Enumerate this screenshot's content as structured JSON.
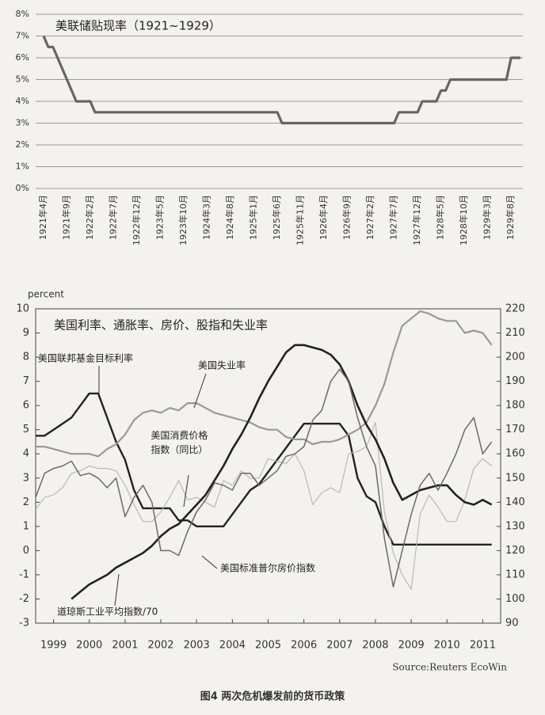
{
  "caption": "图4  两次危机爆发前的货币政策",
  "chart_data": [
    {
      "type": "line",
      "title": "美联储贴现率（1921~1929）",
      "color": "#666666",
      "grid": true,
      "ylim": [
        0,
        8
      ],
      "yticks": [
        {
          "value": 0,
          "label": "0%"
        },
        {
          "value": 1,
          "label": "1%"
        },
        {
          "value": 2,
          "label": "2%"
        },
        {
          "value": 3,
          "label": "3%"
        },
        {
          "value": 4,
          "label": "4%"
        },
        {
          "value": 5,
          "label": "5%"
        },
        {
          "value": 6,
          "label": "6%"
        },
        {
          "value": 7,
          "label": "7%"
        },
        {
          "value": 8,
          "label": "8%"
        }
      ],
      "categories": [
        "1921年4月",
        null,
        null,
        null,
        null,
        "1921年9月",
        null,
        null,
        null,
        null,
        "1922年2月",
        null,
        null,
        null,
        null,
        "1922年7月",
        null,
        null,
        null,
        null,
        "1922年12月",
        null,
        null,
        null,
        null,
        "1923年5月",
        null,
        null,
        null,
        null,
        "1923年10月",
        null,
        null,
        null,
        null,
        "1924年3月",
        null,
        null,
        null,
        null,
        "1924年8月",
        null,
        null,
        null,
        null,
        "1925年1月",
        null,
        null,
        null,
        null,
        "1925年6月",
        null,
        null,
        null,
        null,
        "1925年11月",
        null,
        null,
        null,
        null,
        "1926年4月",
        null,
        null,
        null,
        null,
        "1926年9月",
        null,
        null,
        null,
        null,
        "1927年2月",
        null,
        null,
        null,
        null,
        "1927年7月",
        null,
        null,
        null,
        null,
        "1927年12月",
        null,
        null,
        null,
        null,
        "1928年5月",
        null,
        null,
        null,
        null,
        "1928年10月",
        null,
        null,
        null,
        null,
        "1929年3月",
        null,
        null,
        null,
        null,
        "1929年8月",
        null,
        null
      ],
      "values": [
        7,
        6.5,
        6.5,
        6,
        5.5,
        5,
        4.5,
        4,
        4,
        4,
        4,
        3.5,
        3.5,
        3.5,
        3.5,
        3.5,
        3.5,
        3.5,
        3.5,
        3.5,
        3.5,
        3.5,
        3.5,
        3.5,
        3.5,
        3.5,
        3.5,
        3.5,
        3.5,
        3.5,
        3.5,
        3.5,
        3.5,
        3.5,
        3.5,
        3.5,
        3.5,
        3.5,
        3.5,
        3.5,
        3.5,
        3.5,
        3.5,
        3.5,
        3.5,
        3.5,
        3.5,
        3.5,
        3.5,
        3.5,
        3.5,
        3,
        3,
        3,
        3,
        3,
        3,
        3,
        3,
        3,
        3,
        3,
        3,
        3,
        3,
        3,
        3,
        3,
        3,
        3,
        3,
        3,
        3,
        3,
        3,
        3,
        3.5,
        3.5,
        3.5,
        3.5,
        3.5,
        4,
        4,
        4,
        4,
        4.5,
        4.5,
        5,
        5,
        5,
        5,
        5,
        5,
        5,
        5,
        5,
        5,
        5,
        5,
        5,
        6,
        6,
        6
      ]
    },
    {
      "type": "line",
      "title": "美国利率、通胀率、房价、股指和失业率",
      "ylabel": "percent",
      "source": "Source:Reuters EcoWin",
      "xlim": [
        1999,
        2012
      ],
      "xticks": [
        {
          "value": 1999.5,
          "label": "1999"
        },
        {
          "value": 2000.5,
          "label": "2000"
        },
        {
          "value": 2001.5,
          "label": "2001"
        },
        {
          "value": 2002.5,
          "label": "2002"
        },
        {
          "value": 2003.5,
          "label": "2003"
        },
        {
          "value": 2004.5,
          "label": "2004"
        },
        {
          "value": 2005.5,
          "label": "2005"
        },
        {
          "value": 2006.5,
          "label": "2006"
        },
        {
          "value": 2007.5,
          "label": "2007"
        },
        {
          "value": 2008.5,
          "label": "2008"
        },
        {
          "value": 2009.5,
          "label": "2009"
        },
        {
          "value": 2010.5,
          "label": "2010"
        },
        {
          "value": 2011.5,
          "label": "2011"
        }
      ],
      "ylim": [
        -3,
        10
      ],
      "yticks": [
        -3,
        -2,
        -1,
        0,
        1,
        2,
        3,
        4,
        5,
        6,
        7,
        8,
        9,
        10
      ],
      "y2lim": [
        90,
        220
      ],
      "y2ticks": [
        90,
        100,
        110,
        120,
        130,
        140,
        150,
        160,
        170,
        180,
        190,
        200,
        210,
        220
      ],
      "x": [
        1999,
        1999.25,
        1999.5,
        1999.75,
        2000,
        2000.25,
        2000.5,
        2000.75,
        2001,
        2001.25,
        2001.5,
        2001.75,
        2002,
        2002.25,
        2002.5,
        2002.75,
        2003,
        2003.25,
        2003.5,
        2003.75,
        2004,
        2004.25,
        2004.5,
        2004.75,
        2005,
        2005.25,
        2005.5,
        2005.75,
        2006,
        2006.25,
        2006.5,
        2006.75,
        2007,
        2007.25,
        2007.5,
        2007.75,
        2008,
        2008.25,
        2008.5,
        2008.75,
        2009,
        2009.25,
        2009.5,
        2009.75,
        2010,
        2010.25,
        2010.5,
        2010.75,
        2011,
        2011.25,
        2011.5,
        2011.75
      ],
      "series": [
        {
          "name": "美国联邦基金目标利率",
          "color": "#222222",
          "values": [
            4.75,
            4.75,
            5.0,
            5.25,
            5.5,
            6.0,
            6.5,
            6.5,
            5.5,
            4.5,
            3.75,
            2.5,
            1.75,
            1.75,
            1.75,
            1.75,
            1.25,
            1.25,
            1.0,
            1.0,
            1.0,
            1.0,
            1.5,
            2.0,
            2.5,
            2.75,
            3.25,
            3.75,
            4.25,
            4.75,
            5.25,
            5.25,
            5.25,
            5.25,
            5.25,
            4.75,
            3.0,
            2.25,
            2.0,
            1.0,
            0.25,
            0.25,
            0.25,
            0.25,
            0.25,
            0.25,
            0.25,
            0.25,
            0.25,
            0.25,
            0.25,
            0.25
          ]
        },
        {
          "name": "美国失业率",
          "color": "#999999",
          "values": [
            4.3,
            4.3,
            4.2,
            4.1,
            4.0,
            4.0,
            4.0,
            3.9,
            4.2,
            4.4,
            4.8,
            5.4,
            5.7,
            5.8,
            5.7,
            5.9,
            5.8,
            6.1,
            6.1,
            5.9,
            5.7,
            5.6,
            5.5,
            5.4,
            5.3,
            5.1,
            5.0,
            5.0,
            4.7,
            4.6,
            4.6,
            4.4,
            4.5,
            4.5,
            4.6,
            4.8,
            5.0,
            5.3,
            6.0,
            6.9,
            8.2,
            9.3,
            9.6,
            9.9,
            9.8,
            9.6,
            9.5,
            9.5,
            9.0,
            9.1,
            9.0,
            8.5
          ]
        },
        {
          "name": "美国消费价格指数（同比）",
          "color": "#b8b8b8",
          "values": [
            1.7,
            2.2,
            2.3,
            2.6,
            3.2,
            3.3,
            3.5,
            3.4,
            3.4,
            3.3,
            2.7,
            1.9,
            1.2,
            1.2,
            1.6,
            2.2,
            2.9,
            2.1,
            2.2,
            2.0,
            1.8,
            2.9,
            2.7,
            3.3,
            3.0,
            3.0,
            3.8,
            3.7,
            3.6,
            4.0,
            3.3,
            1.9,
            2.4,
            2.6,
            2.4,
            4.0,
            4.1,
            4.3,
            5.3,
            1.6,
            -0.1,
            -1.0,
            -1.6,
            1.5,
            2.3,
            1.8,
            1.2,
            1.2,
            2.1,
            3.4,
            3.8,
            3.5
          ]
        },
        {
          "name": "美国标准普尔房价指数",
          "color": "#222222",
          "axis": "y2",
          "values": [
            null,
            null,
            null,
            null,
            100,
            103,
            106,
            108,
            110,
            113,
            115,
            117,
            119,
            122,
            126,
            129,
            131,
            135,
            139,
            143,
            149,
            155,
            162,
            168,
            175,
            183,
            190,
            196,
            202,
            205,
            205,
            204,
            203,
            201,
            197,
            190,
            180,
            172,
            166,
            158,
            148,
            141,
            143,
            145,
            146,
            147,
            147,
            143,
            140,
            139,
            141,
            139
          ]
        },
        {
          "name": "道琼斯工业平均指数/70",
          "color": "#6a6a6a",
          "axis": "y2",
          "values": [
            142,
            152,
            154,
            155,
            157,
            151,
            152,
            150,
            146,
            150,
            134,
            142,
            147,
            140,
            120,
            120,
            118,
            128,
            136,
            141,
            148,
            147,
            145,
            152,
            152,
            147,
            150,
            153,
            159,
            160,
            163,
            174,
            178,
            190,
            195,
            190,
            175,
            163,
            155,
            125,
            105,
            120,
            135,
            147,
            152,
            145,
            152,
            160,
            170,
            175,
            160,
            165
          ]
        }
      ]
    }
  ]
}
